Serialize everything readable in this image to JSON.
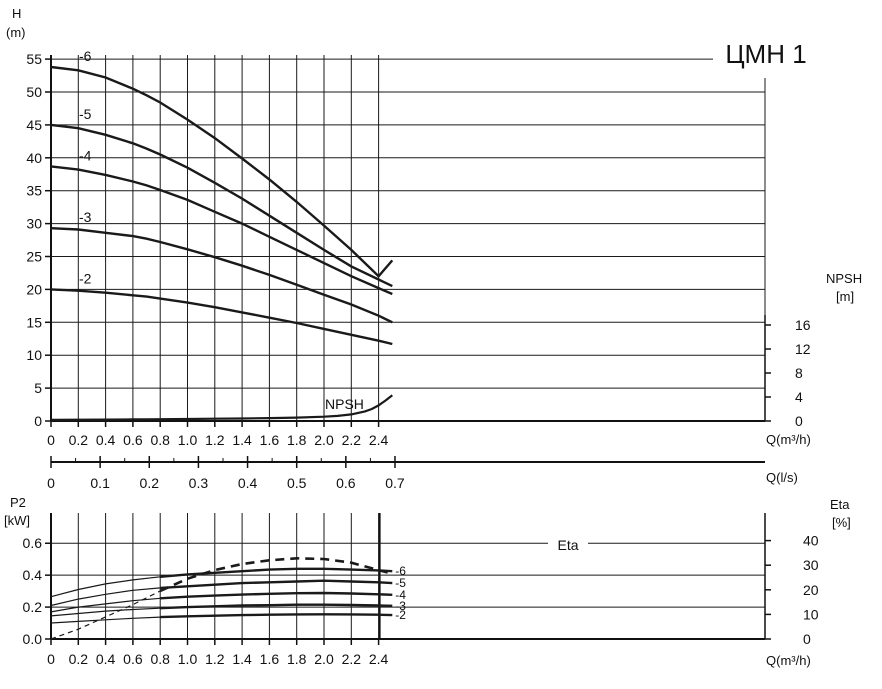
{
  "chart_data": [
    {
      "type": "line",
      "title": "ЦМН 1",
      "ylabel_line1": "H",
      "ylabel_line2": "(m)",
      "y2label_line1": "NPSH",
      "y2label_line2": "[m]",
      "xlabel": "Q(m³/h)",
      "x2label": "Q(l/s)",
      "xlim": [
        0,
        2.6
      ],
      "ylim": [
        0,
        55
      ],
      "y2lim": [
        0,
        16
      ],
      "grid": true,
      "x_ticks": [
        "0",
        "0.2",
        "0.4",
        "0.6",
        "0.8",
        "1.0",
        "1.2",
        "1.4",
        "1.6",
        "1.8",
        "2.0",
        "2.2",
        "2.4"
      ],
      "y_ticks": [
        "0",
        "5",
        "10",
        "15",
        "20",
        "25",
        "30",
        "35",
        "40",
        "45",
        "50",
        "55"
      ],
      "y2_ticks": [
        "0",
        "4",
        "8",
        "12",
        "16"
      ],
      "x2_ticks": [
        "0",
        "0.1",
        "0.2",
        "0.3",
        "0.4",
        "0.5",
        "0.6",
        "0.7"
      ],
      "series": [
        {
          "name": "-6",
          "x": [
            0,
            0.2,
            0.4,
            0.6,
            0.7,
            0.8,
            1.0,
            1.2,
            1.4,
            1.6,
            1.8,
            2.0,
            2.2,
            2.4,
            2.5
          ],
          "y": [
            53.8,
            53.3,
            52.2,
            50.5,
            49.5,
            48.4,
            45.8,
            43.0,
            39.9,
            36.7,
            33.3,
            29.7,
            26.0,
            22.0,
            24.4
          ]
        },
        {
          "name": "-5",
          "x": [
            0,
            0.2,
            0.4,
            0.6,
            0.7,
            0.8,
            1.0,
            1.2,
            1.4,
            1.6,
            1.8,
            2.0,
            2.2,
            2.4,
            2.5
          ],
          "y": [
            45.0,
            44.5,
            43.5,
            42.2,
            41.4,
            40.5,
            38.5,
            36.2,
            33.8,
            31.2,
            28.6,
            26.0,
            23.5,
            21.5,
            20.5
          ]
        },
        {
          "name": "-4",
          "x": [
            0,
            0.2,
            0.4,
            0.6,
            0.7,
            0.8,
            1.0,
            1.2,
            1.4,
            1.6,
            1.8,
            2.0,
            2.2,
            2.4,
            2.5
          ],
          "y": [
            38.7,
            38.2,
            37.4,
            36.4,
            35.8,
            35.1,
            33.6,
            31.8,
            30.0,
            28.0,
            26.0,
            24.0,
            22.0,
            20.2,
            19.3
          ]
        },
        {
          "name": "-3",
          "x": [
            0,
            0.2,
            0.4,
            0.6,
            0.7,
            0.8,
            1.0,
            1.2,
            1.4,
            1.6,
            1.8,
            2.0,
            2.2,
            2.4,
            2.5
          ],
          "y": [
            29.3,
            29.1,
            28.6,
            28.1,
            27.7,
            27.2,
            26.1,
            24.9,
            23.6,
            22.2,
            20.7,
            19.2,
            17.7,
            16.0,
            15.0
          ]
        },
        {
          "name": "-2",
          "x": [
            0,
            0.2,
            0.4,
            0.6,
            0.7,
            0.8,
            1.0,
            1.2,
            1.4,
            1.6,
            1.8,
            2.0,
            2.2,
            2.4,
            2.5
          ],
          "y": [
            20.0,
            19.8,
            19.5,
            19.1,
            18.9,
            18.6,
            18.0,
            17.3,
            16.5,
            15.7,
            14.9,
            14.0,
            13.1,
            12.2,
            11.7
          ]
        },
        {
          "name": "NPSH",
          "axis": "y2",
          "x": [
            0,
            0.2,
            0.4,
            0.6,
            0.7,
            0.8,
            1.0,
            1.2,
            1.4,
            1.6,
            1.8,
            2.0,
            2.1,
            2.2,
            2.3,
            2.35,
            2.4,
            2.45,
            2.5
          ],
          "y": [
            0.2,
            0.22,
            0.24,
            0.27,
            0.28,
            0.3,
            0.34,
            0.38,
            0.42,
            0.48,
            0.56,
            0.72,
            0.85,
            1.1,
            1.6,
            2.0,
            2.6,
            3.4,
            4.3
          ]
        }
      ],
      "annotations": [
        "NPSH"
      ]
    },
    {
      "type": "line",
      "ylabel_line1": "P2",
      "ylabel_line2": "[kW]",
      "y2label_line1": "Eta",
      "y2label_line2": "[%]",
      "xlabel": "Q(m³/h)",
      "xlim": [
        0,
        2.6
      ],
      "ylim": [
        0,
        0.7
      ],
      "y2lim": [
        0,
        45
      ],
      "grid": true,
      "x_ticks": [
        "0",
        "0.2",
        "0.4",
        "0.6",
        "0.8",
        "1.0",
        "1.2",
        "1.4",
        "1.6",
        "1.8",
        "2.0",
        "2.2",
        "2.4"
      ],
      "y_ticks": [
        "0.0",
        "0.2",
        "0.4",
        "0.6"
      ],
      "y2_ticks": [
        "0",
        "10",
        "20",
        "30",
        "40"
      ],
      "series": [
        {
          "name": "Eta",
          "axis": "y2",
          "dashed": true,
          "x": [
            0,
            0.2,
            0.4,
            0.6,
            0.8,
            1.0,
            1.2,
            1.4,
            1.6,
            1.8,
            2.0,
            2.2,
            2.4,
            2.5
          ],
          "y": [
            0,
            4,
            9,
            14,
            19.5,
            24.5,
            28,
            30.5,
            32,
            32.8,
            32.5,
            31,
            28,
            26.5
          ]
        },
        {
          "name": "-6",
          "x": [
            0,
            0.2,
            0.4,
            0.6,
            0.8,
            1.0,
            1.2,
            1.4,
            1.6,
            1.8,
            2.0,
            2.2,
            2.4,
            2.5
          ],
          "y": [
            0.265,
            0.31,
            0.345,
            0.37,
            0.39,
            0.405,
            0.415,
            0.425,
            0.435,
            0.44,
            0.44,
            0.435,
            0.43,
            0.425
          ]
        },
        {
          "name": "-5",
          "x": [
            0,
            0.2,
            0.4,
            0.6,
            0.8,
            1.0,
            1.2,
            1.4,
            1.6,
            1.8,
            2.0,
            2.2,
            2.4,
            2.5
          ],
          "y": [
            0.21,
            0.25,
            0.28,
            0.305,
            0.32,
            0.33,
            0.34,
            0.35,
            0.355,
            0.36,
            0.365,
            0.36,
            0.355,
            0.35
          ]
        },
        {
          "name": "-4",
          "x": [
            0,
            0.2,
            0.4,
            0.6,
            0.8,
            1.0,
            1.2,
            1.4,
            1.6,
            1.8,
            2.0,
            2.2,
            2.4,
            2.5
          ],
          "y": [
            0.17,
            0.2,
            0.22,
            0.24,
            0.255,
            0.265,
            0.272,
            0.278,
            0.283,
            0.287,
            0.288,
            0.285,
            0.28,
            0.277
          ]
        },
        {
          "name": "-3",
          "x": [
            0,
            0.2,
            0.4,
            0.6,
            0.8,
            1.0,
            1.2,
            1.4,
            1.6,
            1.8,
            2.0,
            2.2,
            2.4,
            2.5
          ],
          "y": [
            0.145,
            0.16,
            0.175,
            0.185,
            0.193,
            0.2,
            0.205,
            0.21,
            0.212,
            0.215,
            0.215,
            0.213,
            0.21,
            0.208
          ]
        },
        {
          "name": "-2",
          "x": [
            0,
            0.2,
            0.4,
            0.6,
            0.8,
            1.0,
            1.2,
            1.4,
            1.6,
            1.8,
            2.0,
            2.2,
            2.4,
            2.5
          ],
          "y": [
            0.1,
            0.11,
            0.12,
            0.13,
            0.137,
            0.142,
            0.146,
            0.15,
            0.152,
            0.154,
            0.155,
            0.154,
            0.152,
            0.15
          ]
        }
      ],
      "annotations": [
        "Eta"
      ]
    }
  ]
}
